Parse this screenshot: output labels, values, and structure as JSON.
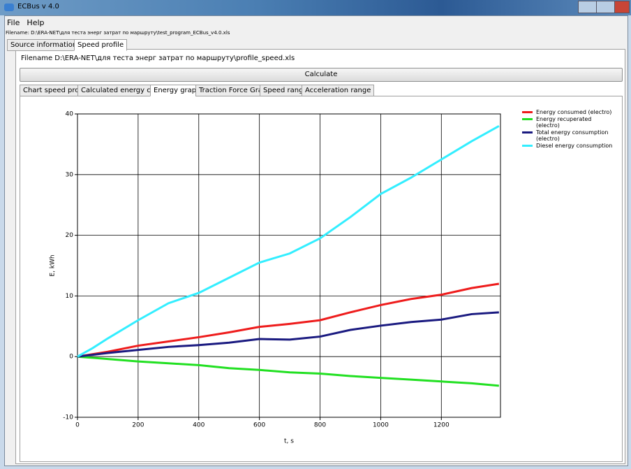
{
  "window": {
    "title": "ECBus v 4.0",
    "menu": [
      "File",
      "Help"
    ],
    "filename": "Filename:  D:\\ERA-NET\\для теста энерг затрат по маршруту\\test_program_ECBus_v4.0.xls",
    "tabs": [
      "Source information",
      "Speed profile"
    ],
    "panel_filename": "Filename D:\\ERA-NET\\для теста энерг затрат по маршруту\\profile_speed.xls",
    "button": "Calculate",
    "subtabs": [
      "Chart speed profile",
      "Calculated energy costs",
      "Energy graph",
      "Traction Force Graph",
      "Speed range",
      "Acceleration range"
    ]
  },
  "chart_data": {
    "type": "line",
    "x_label": "t, s",
    "y_label": "E, kWh",
    "x": [
      0,
      50,
      100,
      200,
      300,
      400,
      500,
      600,
      700,
      800,
      900,
      1000,
      1100,
      1200,
      1300,
      1390
    ],
    "series": [
      {
        "name": "Energy consumed (electro)",
        "color": "#ee1c1c",
        "values": [
          0,
          0.4,
          0.8,
          1.8,
          2.5,
          3.2,
          4,
          4.9,
          5.4,
          6,
          7.3,
          8.5,
          9.5,
          10.2,
          11.3,
          12
        ]
      },
      {
        "name": "Energy recuperated (electro)",
        "color": "#22e022",
        "values": [
          0,
          -0.2,
          -0.4,
          -0.8,
          -1.1,
          -1.4,
          -1.9,
          -2.2,
          -2.6,
          -2.8,
          -3.2,
          -3.5,
          -3.8,
          -4.1,
          -4.4,
          -4.8
        ]
      },
      {
        "name": "Total energy consumption (electro)",
        "color": "#1a1a80",
        "values": [
          0,
          0.3,
          0.6,
          1.1,
          1.6,
          1.9,
          2.3,
          2.9,
          2.8,
          3.3,
          4.4,
          5.1,
          5.7,
          6.1,
          7,
          7.3
        ]
      },
      {
        "name": "Diesel energy consumption",
        "color": "#33eeff",
        "values": [
          0,
          1.4,
          3,
          6,
          8.8,
          10.5,
          13,
          15.5,
          17,
          19.5,
          23,
          26.8,
          29.5,
          32.5,
          35.5,
          38
        ]
      }
    ],
    "xlim": [
      0,
      1395
    ],
    "ylim": [
      -10,
      40
    ],
    "xticks": [
      0,
      200,
      400,
      600,
      800,
      1000,
      1200
    ],
    "yticks": [
      -10,
      0,
      10,
      20,
      30,
      40
    ],
    "grid": true
  }
}
